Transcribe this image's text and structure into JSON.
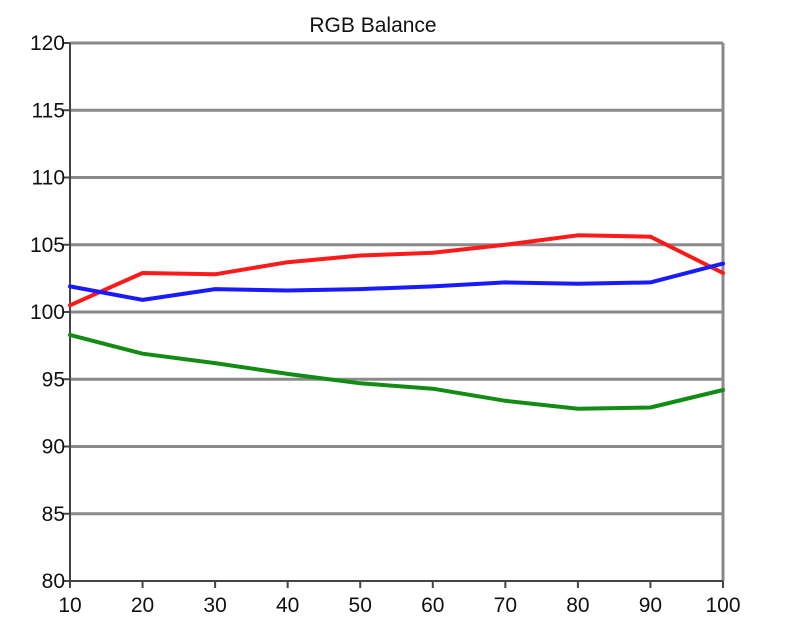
{
  "chart_data": {
    "type": "line",
    "title": "RGB Balance",
    "xlabel": "",
    "ylabel": "",
    "x": [
      10,
      20,
      30,
      40,
      50,
      60,
      70,
      80,
      90,
      100
    ],
    "xlim": [
      10,
      100
    ],
    "ylim": [
      80,
      120
    ],
    "xticks": [
      "10",
      "20",
      "30",
      "40",
      "50",
      "60",
      "70",
      "80",
      "90",
      "100"
    ],
    "yticks": [
      "80",
      "85",
      "90",
      "95",
      "100",
      "105",
      "110",
      "115",
      "120"
    ],
    "grid": "horizontal",
    "legend": "none",
    "series": [
      {
        "color": "#ff1a1a",
        "values": [
          100.5,
          102.9,
          102.8,
          103.7,
          104.2,
          104.4,
          105.0,
          105.7,
          105.6,
          102.9
        ]
      },
      {
        "color": "#1a1aff",
        "values": [
          101.9,
          100.9,
          101.7,
          101.6,
          101.7,
          101.9,
          102.2,
          102.1,
          102.2,
          103.6
        ]
      },
      {
        "color": "#138c13",
        "values": [
          98.3,
          96.9,
          96.2,
          95.4,
          94.7,
          94.3,
          93.4,
          92.8,
          92.9,
          94.2
        ]
      }
    ]
  }
}
